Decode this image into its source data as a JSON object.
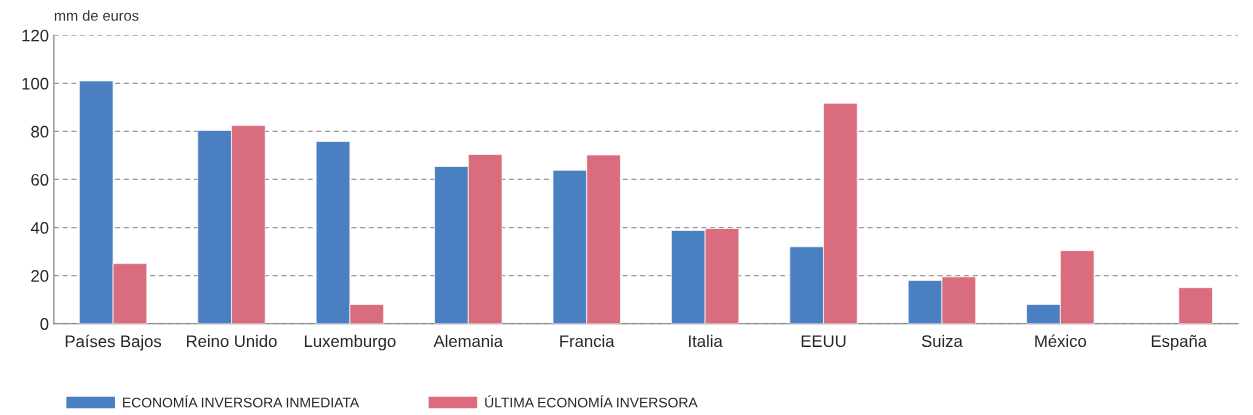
{
  "chart_data": {
    "type": "bar",
    "ylabel": "mm de euros",
    "categories": [
      "Países Bajos",
      "Reino Unido",
      "Luxemburgo",
      "Alemania",
      "Francia",
      "Italia",
      "EEUU",
      "Suiza",
      "México",
      "España"
    ],
    "series": [
      {
        "name": "ECONOMÍA INVERSORA INMEDIATA",
        "color": "#4a7fc1",
        "values": [
          101,
          80.4,
          75.8,
          65.4,
          63.8,
          38.8,
          32,
          18,
          8,
          null
        ]
      },
      {
        "name": "ÚLTIMA ECONOMÍA INVERSORA",
        "color": "#da6d7d",
        "values": [
          25,
          82.5,
          8,
          70.4,
          70.2,
          39.6,
          91.7,
          19.5,
          30.4,
          15
        ]
      }
    ],
    "ylim": [
      0,
      120
    ],
    "yticks": [
      0,
      20,
      40,
      60,
      80,
      100,
      120
    ],
    "grid": "y",
    "legend": "bottom left"
  }
}
